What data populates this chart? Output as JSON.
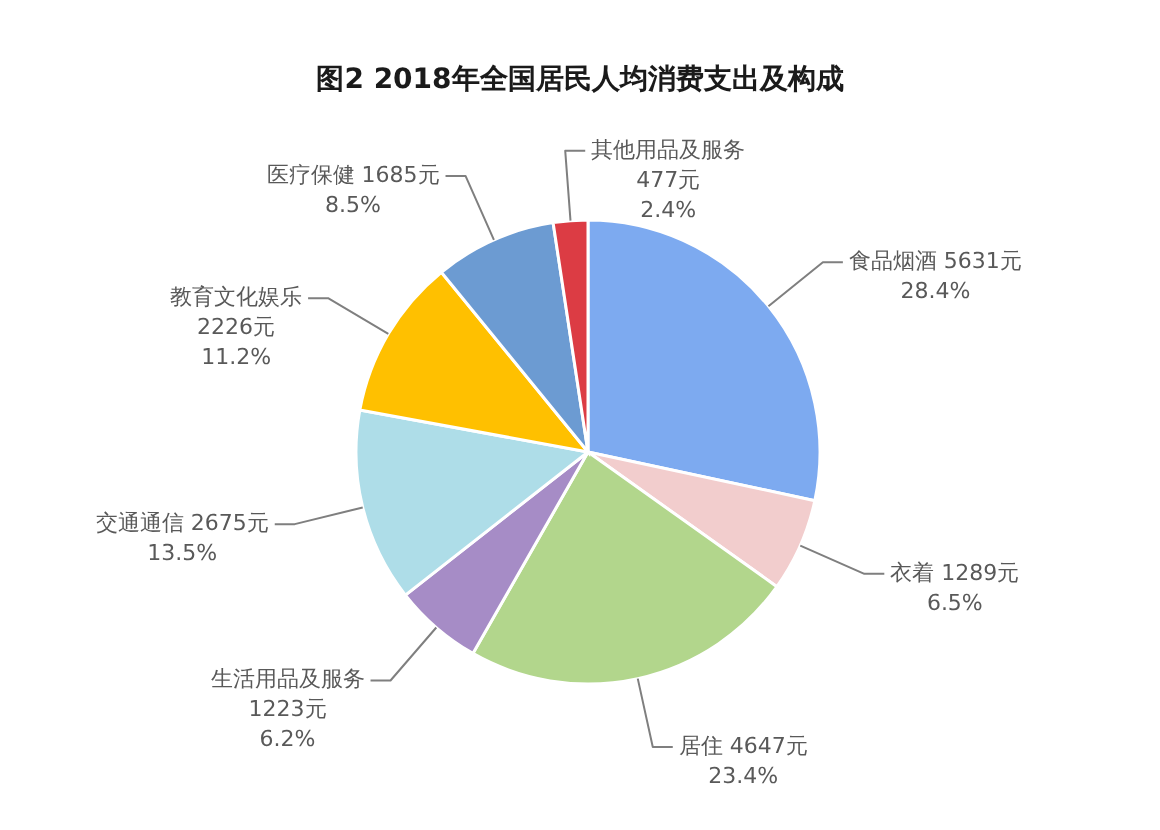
{
  "chart_data": {
    "type": "pie",
    "title": "图2 2018年全国居民人均消费支出及构成",
    "categories": [
      "食品烟酒",
      "衣着",
      "居住",
      "生活用品及服务",
      "交通通信",
      "教育文化娱乐",
      "医疗保健",
      "其他用品及服务"
    ],
    "values": [
      5631,
      1289,
      4647,
      1223,
      2675,
      2226,
      1685,
      477
    ],
    "colors": [
      "#7daaf0",
      "#f2cdcd",
      "#b2d68c",
      "#a68cc6",
      "#aedde8",
      "#ffc000",
      "#6c9bd2",
      "#dc3c44"
    ],
    "value_labels": [
      "5631元 28.4%",
      "1289元 6.5%",
      "4647元 23.4%",
      "1223元 6.2%",
      "2675元 13.5%",
      "2226元 11.2%",
      "1685元 8.5%",
      "477元 2.4%"
    ]
  }
}
